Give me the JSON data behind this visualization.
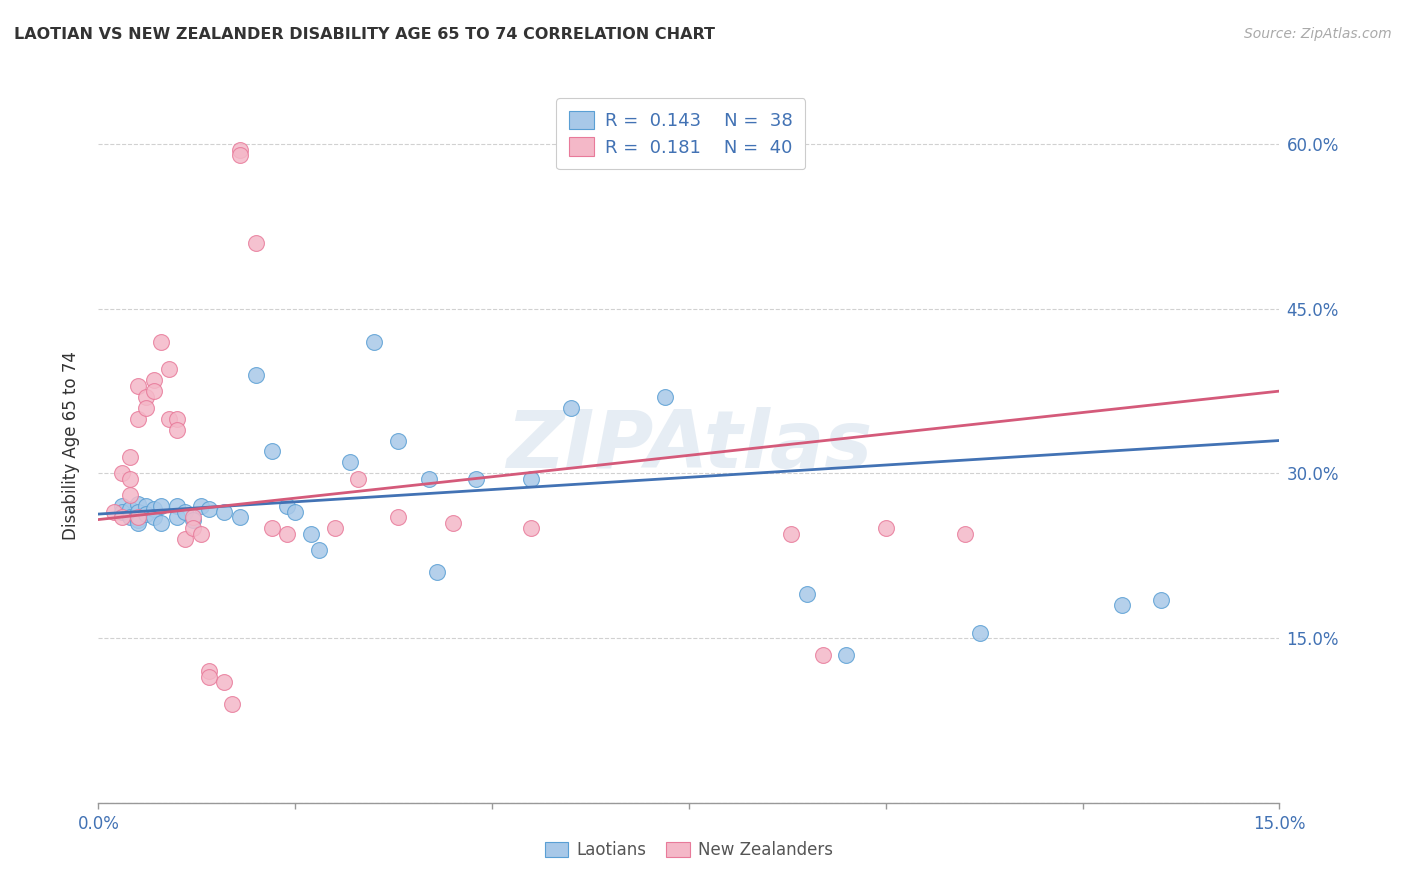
{
  "title": "LAOTIAN VS NEW ZEALANDER DISABILITY AGE 65 TO 74 CORRELATION CHART",
  "source": "Source: ZipAtlas.com",
  "ylabel": "Disability Age 65 to 74",
  "xlim": [
    0.0,
    0.15
  ],
  "ylim": [
    0.0,
    0.65
  ],
  "watermark": "ZIPAtlas",
  "blue_color": "#a8c8e8",
  "pink_color": "#f4b8c8",
  "blue_edge_color": "#5a9fd4",
  "pink_edge_color": "#e87a9a",
  "blue_line_color": "#4272b4",
  "pink_line_color": "#d45a7a",
  "text_color": "#4272b4",
  "blue_scatter": [
    [
      0.003,
      0.27
    ],
    [
      0.003,
      0.265
    ],
    [
      0.004,
      0.268
    ],
    [
      0.004,
      0.26
    ],
    [
      0.005,
      0.272
    ],
    [
      0.005,
      0.265
    ],
    [
      0.005,
      0.258
    ],
    [
      0.005,
      0.255
    ],
    [
      0.006,
      0.27
    ],
    [
      0.006,
      0.263
    ],
    [
      0.007,
      0.268
    ],
    [
      0.007,
      0.26
    ],
    [
      0.008,
      0.27
    ],
    [
      0.008,
      0.255
    ],
    [
      0.01,
      0.27
    ],
    [
      0.01,
      0.26
    ],
    [
      0.011,
      0.265
    ],
    [
      0.012,
      0.258
    ],
    [
      0.013,
      0.27
    ],
    [
      0.014,
      0.268
    ],
    [
      0.016,
      0.265
    ],
    [
      0.018,
      0.26
    ],
    [
      0.02,
      0.39
    ],
    [
      0.022,
      0.32
    ],
    [
      0.024,
      0.27
    ],
    [
      0.025,
      0.265
    ],
    [
      0.027,
      0.245
    ],
    [
      0.028,
      0.23
    ],
    [
      0.032,
      0.31
    ],
    [
      0.035,
      0.42
    ],
    [
      0.038,
      0.33
    ],
    [
      0.042,
      0.295
    ],
    [
      0.043,
      0.21
    ],
    [
      0.048,
      0.295
    ],
    [
      0.055,
      0.295
    ],
    [
      0.06,
      0.36
    ],
    [
      0.072,
      0.37
    ],
    [
      0.09,
      0.19
    ],
    [
      0.095,
      0.135
    ],
    [
      0.112,
      0.155
    ],
    [
      0.13,
      0.18
    ],
    [
      0.135,
      0.185
    ]
  ],
  "pink_scatter": [
    [
      0.002,
      0.265
    ],
    [
      0.003,
      0.26
    ],
    [
      0.003,
      0.3
    ],
    [
      0.004,
      0.295
    ],
    [
      0.004,
      0.315
    ],
    [
      0.004,
      0.28
    ],
    [
      0.005,
      0.26
    ],
    [
      0.005,
      0.35
    ],
    [
      0.005,
      0.38
    ],
    [
      0.006,
      0.37
    ],
    [
      0.006,
      0.36
    ],
    [
      0.007,
      0.385
    ],
    [
      0.007,
      0.375
    ],
    [
      0.008,
      0.42
    ],
    [
      0.009,
      0.395
    ],
    [
      0.009,
      0.35
    ],
    [
      0.01,
      0.35
    ],
    [
      0.01,
      0.34
    ],
    [
      0.011,
      0.24
    ],
    [
      0.012,
      0.26
    ],
    [
      0.012,
      0.25
    ],
    [
      0.013,
      0.245
    ],
    [
      0.014,
      0.12
    ],
    [
      0.014,
      0.115
    ],
    [
      0.016,
      0.11
    ],
    [
      0.017,
      0.09
    ],
    [
      0.018,
      0.595
    ],
    [
      0.018,
      0.59
    ],
    [
      0.02,
      0.51
    ],
    [
      0.022,
      0.25
    ],
    [
      0.024,
      0.245
    ],
    [
      0.03,
      0.25
    ],
    [
      0.033,
      0.295
    ],
    [
      0.038,
      0.26
    ],
    [
      0.045,
      0.255
    ],
    [
      0.055,
      0.25
    ],
    [
      0.088,
      0.245
    ],
    [
      0.092,
      0.135
    ],
    [
      0.1,
      0.25
    ],
    [
      0.11,
      0.245
    ]
  ],
  "blue_fit_x": [
    0.0,
    0.15
  ],
  "blue_fit_y": [
    0.263,
    0.33
  ],
  "pink_fit_x": [
    0.0,
    0.15
  ],
  "pink_fit_y": [
    0.258,
    0.375
  ]
}
